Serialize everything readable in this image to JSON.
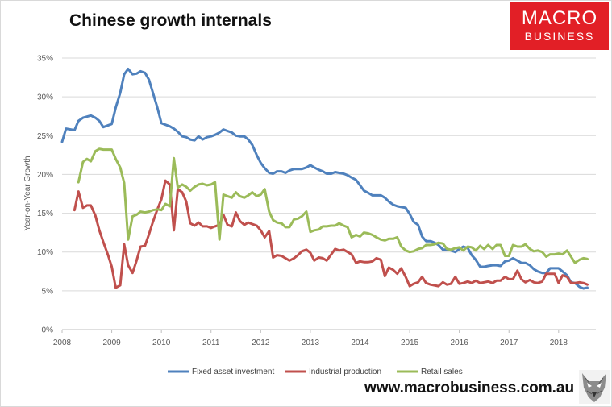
{
  "title": "Chinese growth internals",
  "logo": {
    "line1": "MACRO",
    "line2": "BUSINESS"
  },
  "footer_url": "www.macrobusiness.com.au",
  "colors": {
    "fixed": "#4f81bd",
    "industrial": "#c0504d",
    "retail": "#9bbb59",
    "logo_bg": "#e21f26"
  },
  "chart_data": {
    "type": "line",
    "title": "Chinese growth internals",
    "xlabel": "",
    "ylabel": "Year-on-Year Growth",
    "xlim": [
      2008,
      2018.75
    ],
    "ylim": [
      0,
      35
    ],
    "xticks": [
      2008,
      2009,
      2010,
      2011,
      2012,
      2013,
      2014,
      2015,
      2016,
      2017,
      2018
    ],
    "yticks": [
      0,
      5,
      10,
      15,
      20,
      25,
      30,
      35
    ],
    "ytick_labels": [
      "0%",
      "5%",
      "10%",
      "15%",
      "20%",
      "25%",
      "30%",
      "35%"
    ],
    "legend_position": "bottom",
    "series": [
      {
        "name": "Fixed asset investment",
        "color": "#4f81bd",
        "x": [
          2008.0,
          2008.08,
          2008.25,
          2008.33,
          2008.42,
          2008.58,
          2008.67,
          2008.75,
          2008.83,
          2009.0,
          2009.08,
          2009.17,
          2009.25,
          2009.33,
          2009.42,
          2009.5,
          2009.58,
          2009.67,
          2009.75,
          2009.83,
          2009.92,
          2010.0,
          2010.17,
          2010.25,
          2010.33,
          2010.42,
          2010.5,
          2010.58,
          2010.67,
          2010.75,
          2010.83,
          2010.92,
          2011.0,
          2011.08,
          2011.17,
          2011.25,
          2011.33,
          2011.42,
          2011.5,
          2011.58,
          2011.67,
          2011.75,
          2011.83,
          2011.92,
          2012.0,
          2012.08,
          2012.17,
          2012.25,
          2012.33,
          2012.42,
          2012.5,
          2012.58,
          2012.67,
          2012.75,
          2012.83,
          2012.92,
          2013.0,
          2013.08,
          2013.17,
          2013.25,
          2013.33,
          2013.42,
          2013.5,
          2013.58,
          2013.67,
          2013.75,
          2013.83,
          2013.92,
          2014.0,
          2014.08,
          2014.17,
          2014.25,
          2014.33,
          2014.42,
          2014.5,
          2014.58,
          2014.67,
          2014.75,
          2014.83,
          2014.92,
          2015.0,
          2015.08,
          2015.17,
          2015.25,
          2015.33,
          2015.42,
          2015.5,
          2015.58,
          2015.67,
          2015.75,
          2015.83,
          2015.92,
          2016.0,
          2016.08,
          2016.17,
          2016.25,
          2016.33,
          2016.42,
          2016.5,
          2016.58,
          2016.67,
          2016.75,
          2016.83,
          2016.92,
          2017.0,
          2017.08,
          2017.17,
          2017.25,
          2017.33,
          2017.42,
          2017.5,
          2017.58,
          2017.67,
          2017.75,
          2017.83,
          2017.92,
          2018.0,
          2018.08,
          2018.17,
          2018.25,
          2018.33,
          2018.42,
          2018.5,
          2018.58
        ],
        "values": [
          24.2,
          25.9,
          25.7,
          26.9,
          27.3,
          27.6,
          27.3,
          26.9,
          26.1,
          26.5,
          28.6,
          30.5,
          32.9,
          33.6,
          32.9,
          33.0,
          33.3,
          33.1,
          32.2,
          30.5,
          28.6,
          26.6,
          26.2,
          25.9,
          25.5,
          24.9,
          24.8,
          24.5,
          24.4,
          24.9,
          24.5,
          24.8,
          24.9,
          25.1,
          25.4,
          25.8,
          25.6,
          25.4,
          25.0,
          24.9,
          24.9,
          24.5,
          23.8,
          22.5,
          21.5,
          20.8,
          20.2,
          20.1,
          20.4,
          20.4,
          20.2,
          20.5,
          20.7,
          20.7,
          20.7,
          20.9,
          21.2,
          20.9,
          20.6,
          20.4,
          20.1,
          20.1,
          20.3,
          20.2,
          20.1,
          19.9,
          19.6,
          19.3,
          18.6,
          17.9,
          17.6,
          17.3,
          17.3,
          17.3,
          17.0,
          16.5,
          16.1,
          15.9,
          15.8,
          15.7,
          14.9,
          13.9,
          13.5,
          12.0,
          11.4,
          11.4,
          11.2,
          10.9,
          10.3,
          10.3,
          10.2,
          10.0,
          10.4,
          10.7,
          10.5,
          9.6,
          9.0,
          8.1,
          8.1,
          8.2,
          8.3,
          8.3,
          8.2,
          8.8,
          8.9,
          9.2,
          8.9,
          8.6,
          8.6,
          8.3,
          7.8,
          7.5,
          7.3,
          7.3,
          7.9,
          7.9,
          7.9,
          7.5,
          7.0,
          6.1,
          6.0,
          5.5,
          5.3,
          5.4
        ]
      },
      {
        "name": "Industrial production",
        "color": "#c0504d",
        "x": [
          2008.25,
          2008.33,
          2008.42,
          2008.5,
          2008.58,
          2008.67,
          2008.75,
          2008.83,
          2008.92,
          2009.0,
          2009.08,
          2009.17,
          2009.25,
          2009.33,
          2009.42,
          2009.5,
          2009.58,
          2009.67,
          2009.75,
          2009.83,
          2009.92,
          2010.0,
          2010.08,
          2010.17,
          2010.25,
          2010.33,
          2010.42,
          2010.5,
          2010.58,
          2010.67,
          2010.75,
          2010.83,
          2010.92,
          2011.0,
          2011.08,
          2011.17,
          2011.25,
          2011.33,
          2011.42,
          2011.5,
          2011.58,
          2011.67,
          2011.75,
          2011.83,
          2011.92,
          2012.0,
          2012.08,
          2012.17,
          2012.25,
          2012.33,
          2012.42,
          2012.5,
          2012.58,
          2012.67,
          2012.75,
          2012.83,
          2012.92,
          2013.0,
          2013.08,
          2013.17,
          2013.25,
          2013.33,
          2013.42,
          2013.5,
          2013.58,
          2013.67,
          2013.75,
          2013.83,
          2013.92,
          2014.0,
          2014.08,
          2014.17,
          2014.25,
          2014.33,
          2014.42,
          2014.5,
          2014.58,
          2014.67,
          2014.75,
          2014.83,
          2014.92,
          2015.0,
          2015.08,
          2015.17,
          2015.25,
          2015.33,
          2015.42,
          2015.5,
          2015.58,
          2015.67,
          2015.75,
          2015.83,
          2015.92,
          2016.0,
          2016.08,
          2016.17,
          2016.25,
          2016.33,
          2016.42,
          2016.5,
          2016.58,
          2016.67,
          2016.75,
          2016.83,
          2016.92,
          2017.0,
          2017.08,
          2017.17,
          2017.25,
          2017.33,
          2017.42,
          2017.5,
          2017.58,
          2017.67,
          2017.75,
          2017.83,
          2017.92,
          2018.0,
          2018.08,
          2018.17,
          2018.25,
          2018.33,
          2018.42,
          2018.5,
          2018.58
        ],
        "values": [
          15.4,
          17.8,
          15.7,
          16.0,
          16.0,
          14.7,
          12.8,
          11.3,
          9.7,
          8.1,
          5.4,
          5.7,
          11.0,
          8.3,
          7.3,
          8.9,
          10.7,
          10.8,
          12.3,
          13.9,
          15.5,
          16.8,
          19.2,
          18.7,
          12.8,
          18.1,
          17.7,
          16.5,
          13.7,
          13.4,
          13.8,
          13.3,
          13.3,
          13.1,
          13.3,
          13.5,
          14.8,
          13.5,
          13.3,
          15.1,
          14.0,
          13.5,
          13.8,
          13.6,
          13.4,
          12.8,
          11.9,
          12.7,
          9.3,
          9.6,
          9.5,
          9.2,
          8.9,
          9.2,
          9.6,
          10.1,
          10.3,
          9.9,
          8.9,
          9.3,
          9.2,
          8.9,
          9.7,
          10.4,
          10.2,
          10.3,
          10.0,
          9.7,
          8.6,
          8.8,
          8.7,
          8.7,
          8.8,
          9.2,
          9.0,
          6.9,
          8.0,
          7.7,
          7.2,
          7.9,
          6.8,
          5.6,
          5.9,
          6.1,
          6.8,
          6.0,
          5.8,
          5.7,
          5.6,
          6.1,
          5.8,
          5.9,
          6.8,
          5.9,
          6.0,
          6.2,
          6.0,
          6.3,
          6.0,
          6.1,
          6.2,
          6.0,
          6.3,
          6.3,
          6.8,
          6.5,
          6.5,
          7.6,
          6.5,
          6.1,
          6.4,
          6.1,
          6.0,
          6.2,
          7.2,
          7.2,
          7.2,
          6.0,
          7.0,
          6.8,
          6.0,
          6.0,
          6.1,
          6.0,
          5.8
        ],
        "_note": "x for industrial production aligns element-wise with values"
      },
      {
        "name": "Retail sales",
        "color": "#9bbb59",
        "x": [
          2008.33,
          2008.42,
          2008.5,
          2008.58,
          2008.67,
          2008.75,
          2008.83,
          2008.92,
          2009.0,
          2009.08,
          2009.17,
          2009.25,
          2009.33,
          2009.42,
          2009.5,
          2009.58,
          2009.67,
          2009.75,
          2009.83,
          2009.92,
          2010.0,
          2010.08,
          2010.17,
          2010.25,
          2010.33,
          2010.42,
          2010.5,
          2010.58,
          2010.67,
          2010.75,
          2010.83,
          2010.92,
          2011.0,
          2011.08,
          2011.17,
          2011.25,
          2011.33,
          2011.42,
          2011.5,
          2011.58,
          2011.67,
          2011.75,
          2011.83,
          2011.92,
          2012.0,
          2012.08,
          2012.17,
          2012.25,
          2012.33,
          2012.42,
          2012.5,
          2012.58,
          2012.67,
          2012.75,
          2012.83,
          2012.92,
          2013.0,
          2013.08,
          2013.17,
          2013.25,
          2013.33,
          2013.42,
          2013.5,
          2013.58,
          2013.67,
          2013.75,
          2013.83,
          2013.92,
          2014.0,
          2014.08,
          2014.17,
          2014.25,
          2014.33,
          2014.42,
          2014.5,
          2014.58,
          2014.67,
          2014.75,
          2014.83,
          2014.92,
          2015.0,
          2015.08,
          2015.17,
          2015.25,
          2015.33,
          2015.42,
          2015.5,
          2015.58,
          2015.67,
          2015.75,
          2015.83,
          2015.92,
          2016.0,
          2016.08,
          2016.17,
          2016.25,
          2016.33,
          2016.42,
          2016.5,
          2016.58,
          2016.67,
          2016.75,
          2016.83,
          2016.92,
          2017.0,
          2017.08,
          2017.17,
          2017.25,
          2017.33,
          2017.42,
          2017.5,
          2017.58,
          2017.67,
          2017.75,
          2017.83,
          2017.92,
          2018.0,
          2018.08,
          2018.17,
          2018.25,
          2018.33,
          2018.42,
          2018.5,
          2018.58
        ],
        "values": [
          19.0,
          21.6,
          22.0,
          21.7,
          23.0,
          23.3,
          23.2,
          23.2,
          23.2,
          22.0,
          20.9,
          18.9,
          11.6,
          14.6,
          14.8,
          15.2,
          15.1,
          15.2,
          15.4,
          15.5,
          15.4,
          16.2,
          15.9,
          22.1,
          18.3,
          18.7,
          18.4,
          17.9,
          18.4,
          18.7,
          18.8,
          18.6,
          18.7,
          19.0,
          11.6,
          17.4,
          17.2,
          17.0,
          17.7,
          17.2,
          17.0,
          17.3,
          17.7,
          17.2,
          17.4,
          18.1,
          15.2,
          14.1,
          13.8,
          13.7,
          13.2,
          13.2,
          14.2,
          14.3,
          14.6,
          15.2,
          12.6,
          12.8,
          12.9,
          13.3,
          13.3,
          13.4,
          13.4,
          13.7,
          13.4,
          13.2,
          11.9,
          12.2,
          12.0,
          12.5,
          12.4,
          12.2,
          11.9,
          11.6,
          11.5,
          11.7,
          11.7,
          11.9,
          10.7,
          10.2,
          10.0,
          10.1,
          10.4,
          10.5,
          10.9,
          10.9,
          11.0,
          11.2,
          11.1,
          10.4,
          10.3,
          10.5,
          10.6,
          10.2,
          10.7,
          10.6,
          10.2,
          10.8,
          10.4,
          10.9,
          10.4,
          10.9,
          10.9,
          9.5,
          9.5,
          10.9,
          10.7,
          10.7,
          11.0,
          10.4,
          10.1,
          10.2,
          10.0,
          9.4,
          9.7,
          9.7,
          9.8,
          9.7,
          10.2,
          9.4,
          8.6,
          9.0,
          9.2,
          9.1
        ]
      }
    ]
  }
}
